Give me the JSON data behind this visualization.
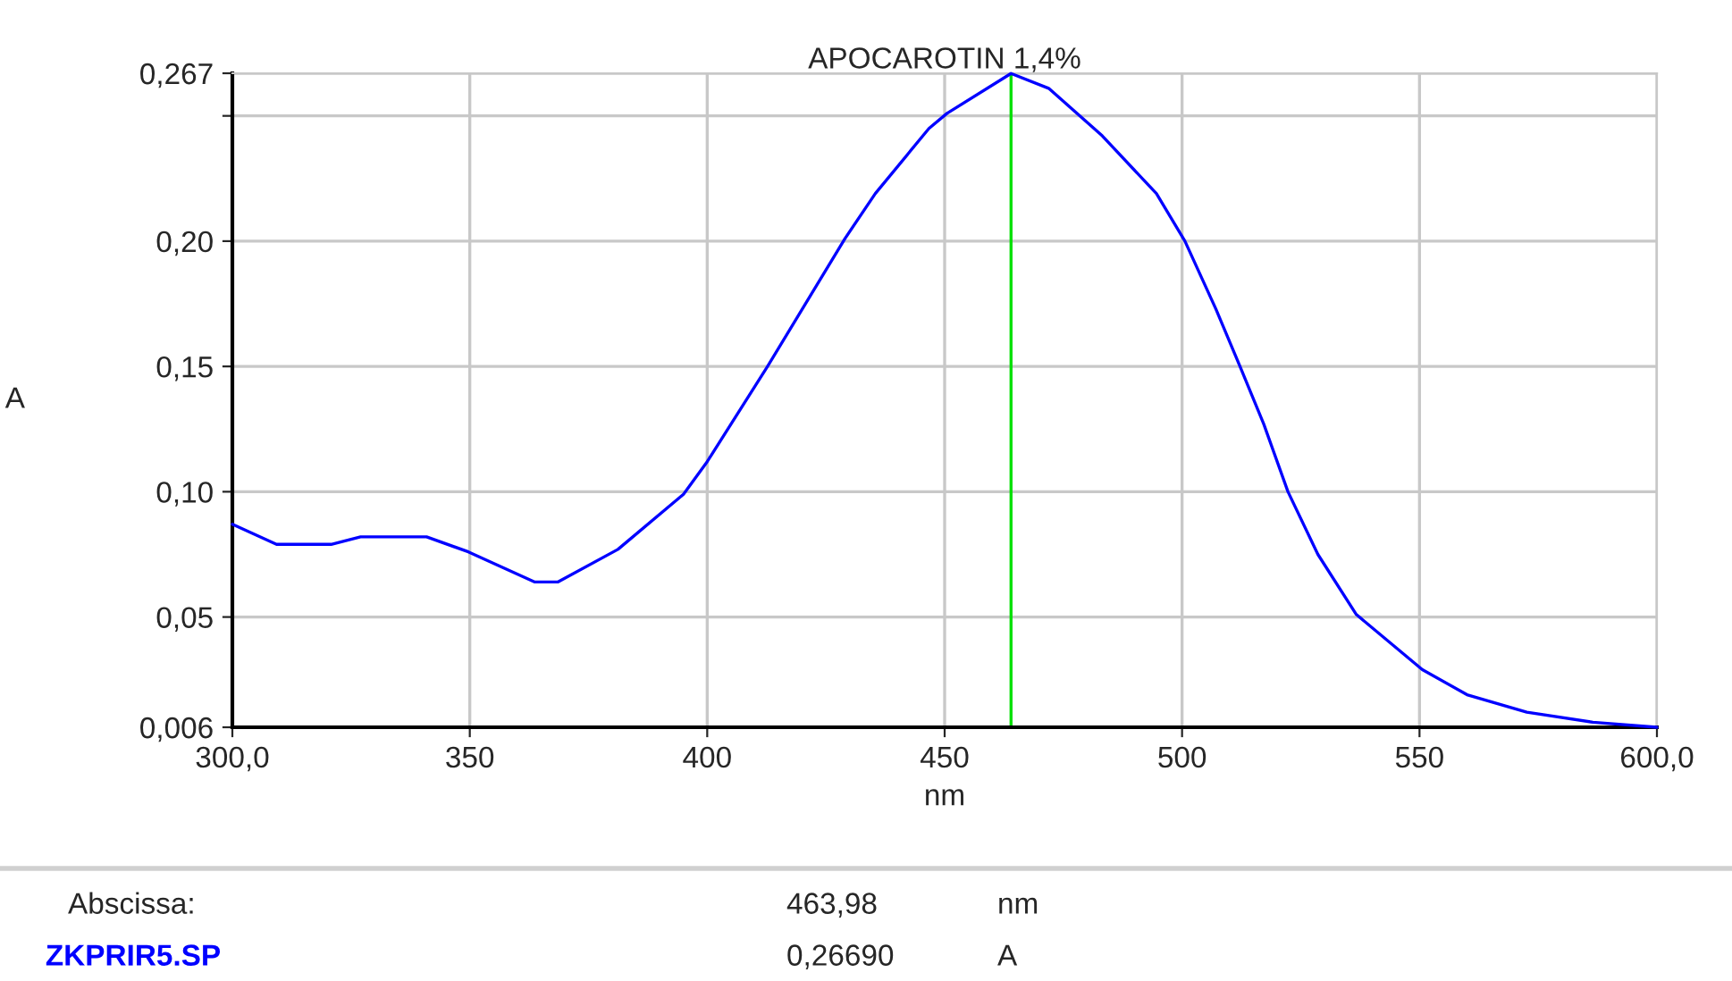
{
  "chart_data": {
    "type": "line",
    "title": "APOCAROTIN 1,4%",
    "xlabel": "nm",
    "ylabel": "A",
    "series": [
      {
        "color": "#0000ff",
        "x": [
          300,
          309.3,
          320.8,
          327,
          340.9,
          349.7,
          363.6,
          368.6,
          381.2,
          395,
          400,
          412.7,
          429,
          435.4,
          446.7,
          450.5,
          463.98,
          471.9,
          483.2,
          494.6,
          500.6,
          507.1,
          512.2,
          517.2,
          522.3,
          528.6,
          536.7,
          550.6,
          560,
          572.6,
          586.5,
          600
        ],
        "values": [
          0.087,
          0.079,
          0.079,
          0.082,
          0.082,
          0.076,
          0.064,
          0.064,
          0.077,
          0.099,
          0.112,
          0.15,
          0.201,
          0.219,
          0.245,
          0.251,
          0.2669,
          0.261,
          0.242,
          0.219,
          0.2,
          0.173,
          0.15,
          0.127,
          0.1,
          0.075,
          0.051,
          0.029,
          0.019,
          0.012,
          0.008,
          0.006
        ]
      }
    ],
    "xlim": [
      300,
      600
    ],
    "ylim": [
      0.006,
      0.267
    ],
    "xticks": [
      {
        "value": 300,
        "label": "300,0"
      },
      350,
      400,
      450,
      500,
      550,
      {
        "value": 600,
        "label": "600,0"
      }
    ],
    "yticks": [
      {
        "value": 0.006,
        "label": "0,006"
      },
      {
        "value": 0.05,
        "label": "0,05"
      },
      {
        "value": 0.1,
        "label": "0,10"
      },
      {
        "value": 0.15,
        "label": "0,15"
      },
      {
        "value": 0.2,
        "label": "0,20"
      },
      {
        "value": 0.25,
        "label": null
      },
      {
        "value": 0.267,
        "label": "0,267"
      }
    ],
    "ref_lines": [
      {
        "axis": "x",
        "value": 463.98,
        "color": "#00e000"
      }
    ],
    "grid": true,
    "annotations": [
      "Abscissa:",
      "463,98",
      "nm",
      "ZKPRIR5.SP",
      "0,26690",
      "A"
    ]
  }
}
